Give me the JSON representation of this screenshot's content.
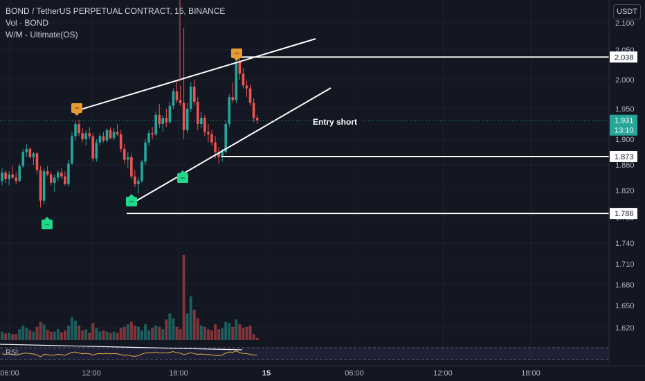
{
  "header": {
    "title": "BOND / TetherUS PERPETUAL CONTRACT, 15, BINANCE",
    "volume_label": "Vol · BOND",
    "indicator_label": "W/M - Ultimate(OS)",
    "currency": "USDT",
    "rsi_label": "RSI"
  },
  "chart_data": {
    "type": "candlestick",
    "symbol": "BOND / TetherUS PERPETUAL CONTRACT",
    "interval": "15",
    "exchange": "BINANCE",
    "y_ticks": [
      "2.100",
      "2.050",
      "2.000",
      "1.950",
      "1.900",
      "1.860",
      "1.820",
      "1.780",
      "1.740",
      "1.710",
      "1.680",
      "1.650",
      "1.620"
    ],
    "x_ticks": [
      {
        "label": "06:00",
        "bold": false
      },
      {
        "label": "12:00",
        "bold": false
      },
      {
        "label": "18:00",
        "bold": false
      },
      {
        "label": "15",
        "bold": true
      },
      {
        "label": "06:00",
        "bold": false
      },
      {
        "label": "12:00",
        "bold": false
      },
      {
        "label": "18:00",
        "bold": false
      }
    ],
    "levels": [
      {
        "value": 2.038,
        "label": "2.038"
      },
      {
        "value": 1.873,
        "label": "1.873"
      },
      {
        "value": 1.786,
        "label": "1.786"
      }
    ],
    "current_price": {
      "value": 1.931,
      "label": "1.931",
      "countdown": "13:10"
    },
    "annotation": "Entry short",
    "ohlc": [
      [
        1.835,
        1.855,
        1.828,
        1.848
      ],
      [
        1.848,
        1.852,
        1.832,
        1.838
      ],
      [
        1.838,
        1.85,
        1.828,
        1.845
      ],
      [
        1.845,
        1.858,
        1.838,
        1.84
      ],
      [
        1.84,
        1.848,
        1.83,
        1.835
      ],
      [
        1.835,
        1.862,
        1.833,
        1.858
      ],
      [
        1.858,
        1.885,
        1.855,
        1.88
      ],
      [
        1.88,
        1.892,
        1.872,
        1.885
      ],
      [
        1.885,
        1.888,
        1.87,
        1.872
      ],
      [
        1.872,
        1.88,
        1.86,
        1.878
      ],
      [
        1.878,
        1.88,
        1.845,
        1.852
      ],
      [
        1.852,
        1.858,
        1.795,
        1.805
      ],
      [
        1.805,
        1.855,
        1.8,
        1.85
      ],
      [
        1.85,
        1.858,
        1.842,
        1.845
      ],
      [
        1.845,
        1.85,
        1.828,
        1.832
      ],
      [
        1.832,
        1.845,
        1.818,
        1.84
      ],
      [
        1.84,
        1.852,
        1.835,
        1.848
      ],
      [
        1.848,
        1.855,
        1.838,
        1.842
      ],
      [
        1.842,
        1.85,
        1.828,
        1.83
      ],
      [
        1.83,
        1.868,
        1.826,
        1.862
      ],
      [
        1.862,
        1.912,
        1.86,
        1.905
      ],
      [
        1.905,
        1.93,
        1.898,
        1.925
      ],
      [
        1.925,
        1.932,
        1.905,
        1.91
      ],
      [
        1.91,
        1.918,
        1.895,
        1.9
      ],
      [
        1.9,
        1.915,
        1.89,
        1.91
      ],
      [
        1.91,
        1.92,
        1.9,
        1.905
      ],
      [
        1.905,
        1.91,
        1.865,
        1.87
      ],
      [
        1.87,
        1.9,
        1.865,
        1.895
      ],
      [
        1.895,
        1.91,
        1.89,
        1.905
      ],
      [
        1.905,
        1.912,
        1.895,
        1.898
      ],
      [
        1.898,
        1.918,
        1.895,
        1.915
      ],
      [
        1.915,
        1.92,
        1.9,
        1.902
      ],
      [
        1.902,
        1.918,
        1.898,
        1.912
      ],
      [
        1.912,
        1.925,
        1.905,
        1.908
      ],
      [
        1.908,
        1.915,
        1.88,
        1.885
      ],
      [
        1.885,
        1.892,
        1.862,
        1.868
      ],
      [
        1.868,
        1.88,
        1.855,
        1.872
      ],
      [
        1.872,
        1.878,
        1.838,
        1.842
      ],
      [
        1.842,
        1.852,
        1.825,
        1.83
      ],
      [
        1.83,
        1.84,
        1.815,
        1.835
      ],
      [
        1.835,
        1.868,
        1.832,
        1.865
      ],
      [
        1.865,
        1.9,
        1.86,
        1.895
      ],
      [
        1.895,
        1.915,
        1.89,
        1.91
      ],
      [
        1.91,
        1.92,
        1.9,
        1.908
      ],
      [
        1.908,
        1.945,
        1.905,
        1.94
      ],
      [
        1.94,
        1.958,
        1.918,
        1.925
      ],
      [
        1.925,
        1.94,
        1.912,
        1.935
      ],
      [
        1.935,
        1.95,
        1.92,
        1.928
      ],
      [
        1.928,
        1.962,
        1.925,
        1.955
      ],
      [
        1.955,
        1.985,
        1.95,
        1.98
      ],
      [
        1.98,
        1.998,
        1.96,
        1.965
      ],
      [
        1.965,
        1.99,
        1.955,
        1.96
      ],
      [
        1.96,
        2.09,
        1.9,
        1.915
      ],
      [
        1.915,
        1.96,
        1.91,
        1.95
      ],
      [
        1.95,
        1.995,
        1.945,
        1.988
      ],
      [
        1.988,
        2.0,
        1.955,
        1.962
      ],
      [
        1.962,
        1.97,
        1.915,
        1.925
      ],
      [
        1.925,
        1.945,
        1.918,
        1.935
      ],
      [
        1.935,
        1.94,
        1.905,
        1.912
      ],
      [
        1.912,
        1.925,
        1.895,
        1.908
      ],
      [
        1.908,
        1.915,
        1.89,
        1.895
      ],
      [
        1.895,
        1.905,
        1.87,
        1.88
      ],
      [
        1.88,
        1.888,
        1.862,
        1.872
      ],
      [
        1.872,
        1.885,
        1.865,
        1.88
      ],
      [
        1.88,
        1.93,
        1.878,
        1.925
      ],
      [
        1.925,
        1.975,
        1.92,
        1.97
      ],
      [
        1.97,
        1.995,
        1.96,
        1.965
      ],
      [
        1.965,
        2.042,
        1.96,
        2.03
      ],
      [
        2.03,
        2.04,
        2.0,
        2.01
      ],
      [
        2.01,
        2.02,
        1.985,
        1.99
      ],
      [
        1.99,
        1.998,
        1.97,
        1.985
      ],
      [
        1.985,
        1.992,
        1.955,
        1.96
      ],
      [
        1.96,
        1.968,
        1.928,
        1.935
      ],
      [
        1.935,
        1.94,
        1.925,
        1.931
      ]
    ],
    "volume": [
      14,
      11,
      12,
      10,
      10,
      18,
      24,
      20,
      16,
      14,
      22,
      30,
      26,
      17,
      14,
      14,
      18,
      13,
      16,
      24,
      38,
      32,
      24,
      16,
      18,
      12,
      28,
      20,
      14,
      16,
      14,
      12,
      14,
      12,
      20,
      22,
      26,
      30,
      24,
      22,
      16,
      26,
      16,
      20,
      24,
      22,
      18,
      34,
      44,
      36,
      22,
      18,
      140,
      44,
      72,
      50,
      36,
      24,
      22,
      18,
      16,
      26,
      18,
      20,
      30,
      28,
      22,
      34,
      26,
      20,
      22,
      24,
      10,
      4
    ],
    "rsi": [
      55,
      52,
      54,
      50,
      48,
      52,
      58,
      60,
      56,
      54,
      48,
      38,
      52,
      50,
      46,
      48,
      52,
      50,
      46,
      56,
      64,
      66,
      60,
      56,
      58,
      55,
      48,
      54,
      57,
      55,
      58,
      55,
      57,
      55,
      50,
      46,
      48,
      42,
      40,
      44,
      54,
      60,
      62,
      61,
      66,
      60,
      62,
      60,
      64,
      68,
      62,
      60,
      50,
      56,
      62,
      56,
      52,
      54,
      50,
      52,
      48,
      46,
      44,
      48,
      60,
      66,
      64,
      72,
      62,
      58,
      56,
      52,
      48,
      47
    ]
  }
}
